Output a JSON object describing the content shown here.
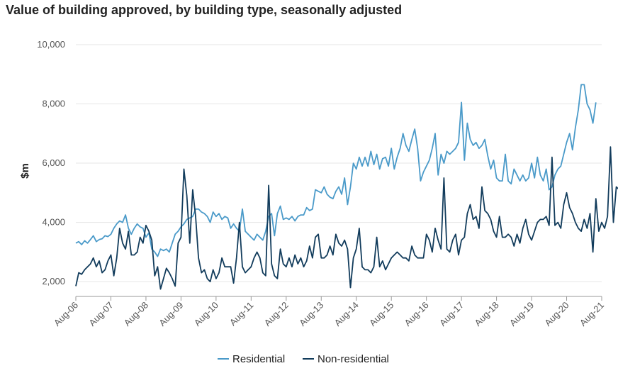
{
  "chart_data": {
    "type": "line",
    "title": "Value of building approved, by building type, seasonally adjusted",
    "ylabel": "$m",
    "xlabel": "",
    "ylim": [
      1500,
      10000
    ],
    "yticks": [
      2000,
      4000,
      6000,
      8000,
      10000
    ],
    "ytick_labels": [
      "2,000",
      "4,000",
      "6,000",
      "8,000",
      "10,000"
    ],
    "xticks": [
      "Aug-06",
      "Aug-07",
      "Aug-08",
      "Aug-09",
      "Aug-10",
      "Aug-11",
      "Aug-12",
      "Aug-13",
      "Aug-14",
      "Aug-15",
      "Aug-16",
      "Aug-17",
      "Aug-18",
      "Aug-19",
      "Aug-20",
      "Aug-21"
    ],
    "x_start": "Aug-06",
    "x_frequency": "monthly",
    "grid": "horizontal",
    "legend_position": "bottom",
    "series": [
      {
        "name": "Residential",
        "color": "#4a9ac9",
        "values": [
          3300,
          3350,
          3250,
          3380,
          3300,
          3420,
          3550,
          3350,
          3420,
          3450,
          3550,
          3520,
          3600,
          3800,
          3950,
          4050,
          4000,
          4250,
          3800,
          3600,
          3800,
          3950,
          3850,
          3800,
          3500,
          3650,
          3100,
          3000,
          2850,
          3100,
          3050,
          3100,
          3000,
          3300,
          3600,
          3700,
          3850,
          3950,
          4100,
          4150,
          4200,
          4450,
          4450,
          4350,
          4300,
          4200,
          4000,
          4350,
          4200,
          4300,
          4100,
          4200,
          4150,
          3800,
          3950,
          3800,
          3700,
          4450,
          3700,
          3600,
          3500,
          3400,
          3600,
          3500,
          3400,
          3700,
          4200,
          4300,
          3550,
          4300,
          4550,
          4100,
          4150,
          4100,
          4200,
          4050,
          4200,
          4250,
          4250,
          4500,
          4400,
          4450,
          5100,
          5050,
          5000,
          5200,
          4950,
          4850,
          4800,
          5050,
          5200,
          4950,
          5500,
          4600,
          5200,
          6000,
          5800,
          6200,
          5900,
          6200,
          5900,
          6400,
          5950,
          6300,
          5800,
          6150,
          6200,
          5900,
          6500,
          5800,
          6200,
          6500,
          7000,
          6600,
          6400,
          6800,
          7150,
          6500,
          5400,
          5700,
          5900,
          6100,
          6500,
          7000,
          5600,
          6300,
          6000,
          6400,
          6300,
          6400,
          6500,
          6700,
          8050,
          6100,
          7350,
          6800,
          6600,
          6700,
          6500,
          6600,
          6800,
          6250,
          5800,
          6100,
          5500,
          5400,
          5400,
          6300,
          5400,
          5300,
          5800,
          5600,
          5400,
          5600,
          5400,
          5500,
          6000,
          5500,
          6200,
          5600,
          5400,
          5800,
          5100,
          5200,
          5600,
          5800,
          5900,
          6300,
          6700,
          7000,
          6450,
          7200,
          7800,
          8650,
          8650,
          8000,
          7800,
          7350,
          8050
        ]
      },
      {
        "name": "Non-residential",
        "color": "#123c5c",
        "values": [
          1850,
          2300,
          2250,
          2400,
          2500,
          2600,
          2800,
          2500,
          2700,
          2300,
          2400,
          2700,
          2900,
          2200,
          2800,
          3800,
          3300,
          3100,
          3700,
          2900,
          2900,
          3000,
          3500,
          3300,
          3900,
          3700,
          3400,
          2200,
          2500,
          1750,
          2100,
          2450,
          2300,
          2100,
          1850,
          3300,
          3500,
          5800,
          4900,
          3300,
          5100,
          4200,
          2800,
          2300,
          2400,
          2100,
          2000,
          2400,
          2100,
          2300,
          2800,
          2500,
          2500,
          2500,
          1950,
          2800,
          4000,
          2500,
          2300,
          2400,
          2500,
          2800,
          3000,
          2800,
          2300,
          2200,
          5250,
          2600,
          2200,
          2100,
          3100,
          2600,
          2500,
          2800,
          2500,
          2900,
          2600,
          2800,
          2500,
          2700,
          3200,
          2800,
          3500,
          3600,
          2800,
          2800,
          2900,
          3200,
          2900,
          3600,
          3300,
          3200,
          3400,
          3100,
          1800,
          2800,
          3100,
          3800,
          2500,
          2400,
          2400,
          2300,
          2500,
          3500,
          2500,
          2700,
          2400,
          2600,
          2800,
          2900,
          3000,
          2900,
          2800,
          2800,
          2700,
          3200,
          2900,
          2800,
          2800,
          2800,
          3600,
          3400,
          3000,
          3800,
          3400,
          3100,
          5500,
          3100,
          3000,
          3400,
          3600,
          2900,
          3400,
          3500,
          4300,
          4600,
          4100,
          4200,
          3800,
          5200,
          4400,
          4300,
          4100,
          3700,
          3500,
          4200,
          3500,
          3500,
          3600,
          3500,
          3200,
          3600,
          3300,
          3800,
          4100,
          3600,
          3400,
          3700,
          4000,
          4100,
          4100,
          4200,
          3900,
          6200,
          3900,
          4000,
          3800,
          4600,
          5000,
          4500,
          4300,
          4000,
          3800,
          3700,
          4100,
          3800,
          4300,
          3000,
          4800,
          3700,
          4000,
          3800,
          4200,
          6550,
          4000,
          5200,
          5100,
          3500,
          5050
        ]
      }
    ]
  }
}
